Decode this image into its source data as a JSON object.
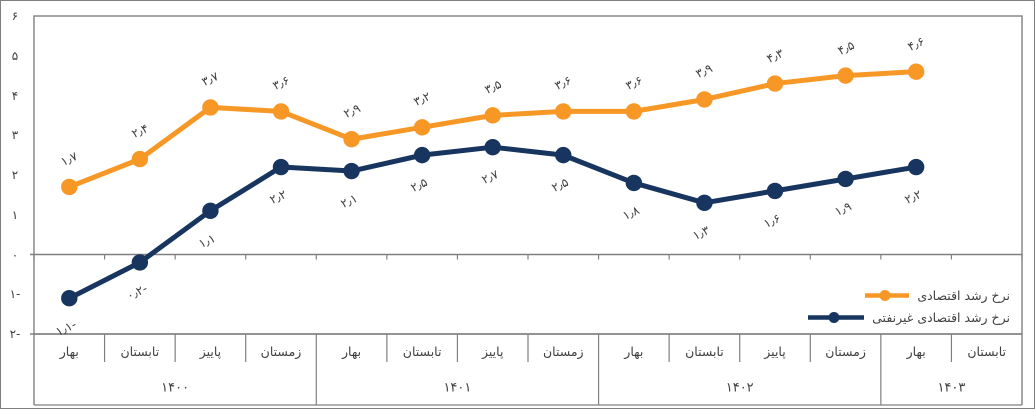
{
  "chart_data": {
    "type": "line",
    "title": "",
    "xlabel": "",
    "ylabel": "",
    "ylim": [
      -2,
      6
    ],
    "grid": "zero-line-only",
    "legend_position": "inside-bottom-right",
    "categories_seasons": [
      "بهار",
      "تابستان",
      "پاییز",
      "زمستان",
      "بهار",
      "تابستان",
      "پاییز",
      "زمستان",
      "بهار",
      "تابستان",
      "پاییز",
      "زمستان",
      "بهار",
      "تابستان"
    ],
    "year_groups": [
      {
        "label": "۱۴۰۰",
        "span": 4
      },
      {
        "label": "۱۴۰۱",
        "span": 4
      },
      {
        "label": "۱۴۰۲",
        "span": 4
      },
      {
        "label": "۱۴۰۳",
        "span": 2
      }
    ],
    "y_ticks": [
      {
        "value": 6,
        "label": "۶"
      },
      {
        "value": 5,
        "label": "۵"
      },
      {
        "value": 4,
        "label": "۴"
      },
      {
        "value": 3,
        "label": "۳"
      },
      {
        "value": 2,
        "label": "۲"
      },
      {
        "value": 1,
        "label": "۱"
      },
      {
        "value": 0,
        "label": "۰"
      },
      {
        "value": -1,
        "label": "۱-"
      },
      {
        "value": -2,
        "label": "۲-"
      }
    ],
    "series": [
      {
        "name": "نرخ رشد اقتصادی",
        "color": "#F79826",
        "values": [
          1.7,
          2.4,
          3.7,
          3.6,
          2.9,
          3.2,
          3.5,
          3.6,
          3.6,
          3.9,
          4.3,
          4.5,
          4.6
        ],
        "labels": [
          "۱٫۷",
          "۲٫۴",
          "۳٫۷",
          "۳٫۶",
          "۲٫۹",
          "۳٫۲",
          "۳٫۵",
          "۳٫۶",
          "۳٫۶",
          "۳٫۹",
          "۴٫۳",
          "۴٫۵",
          "۴٫۶"
        ]
      },
      {
        "name": "نرخ رشد اقتصادی غیرنفتی",
        "color": "#17355E",
        "values": [
          -1.1,
          -0.2,
          1.1,
          2.2,
          2.1,
          2.5,
          2.7,
          2.5,
          1.8,
          1.3,
          1.6,
          1.9,
          2.2
        ],
        "labels": [
          "۱٫۱-",
          "۰٫۲-",
          "۱٫۱",
          "۲٫۲",
          "۲٫۱",
          "۲٫۵",
          "۲٫۷",
          "۲٫۵",
          "۱٫۸",
          "۱٫۳",
          "۱٫۶",
          "۱٫۹",
          "۲٫۲"
        ]
      }
    ],
    "colors": {
      "axis_line": "#808080",
      "text": "#404040",
      "background": "#ffffff"
    }
  }
}
